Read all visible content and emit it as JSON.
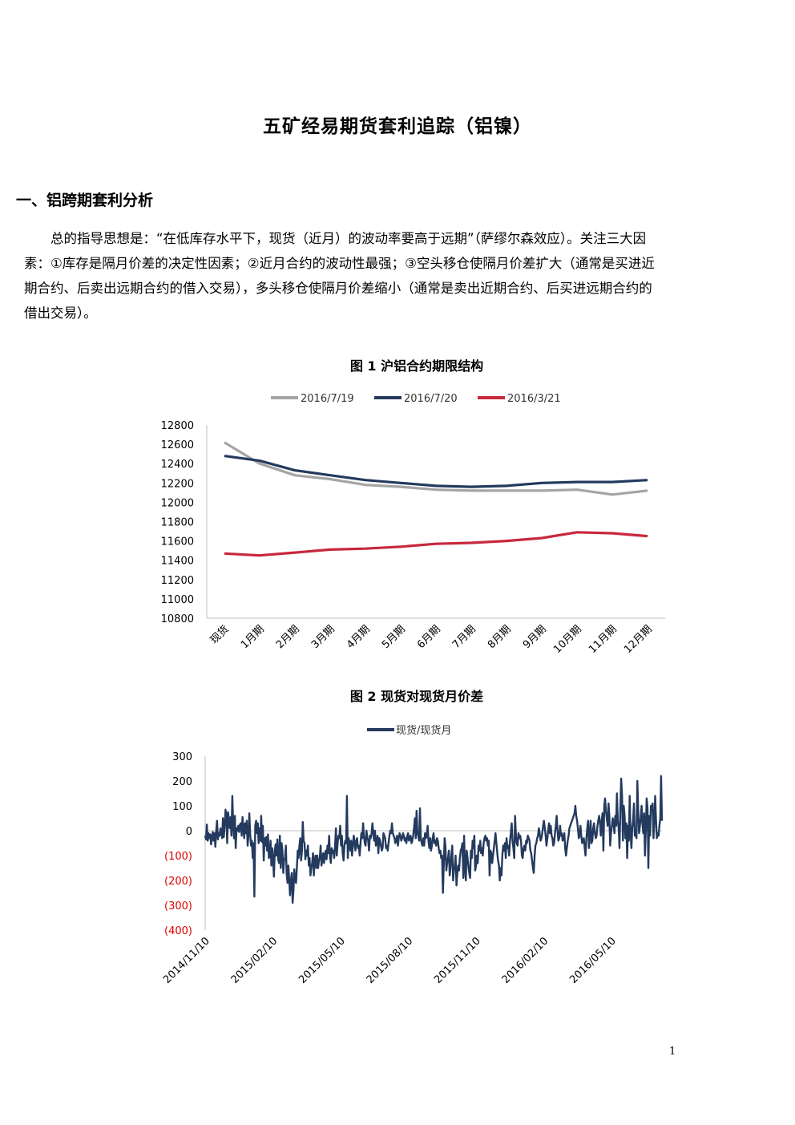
{
  "document": {
    "title": "五矿经易期货套利追踪（铝镍）",
    "section_heading": "一、铝跨期套利分析",
    "paragraph_lines": [
      "总的指导思想是：“在低库存水平下，现货（近月）的波动率要高于远期”（萨缪尔森效应）。关注三大因",
      "素：①库存是隔月价差的决定性因素；②近月合约的波动性最强；③空头移仓使隔月价差扩大（通常是买进近",
      "期合约、后卖出远期合约的借入交易），多头移仓使隔月价差缩小（通常是卖出近期合约、后买进远期合约的",
      "借出交易）。"
    ],
    "page_number": "1"
  },
  "chart_data": [
    {
      "type": "line",
      "title": "图 1  沪铝合约期限结构",
      "categories": [
        "现货",
        "1月期",
        "2月期",
        "3月期",
        "4月期",
        "5月期",
        "6月期",
        "7月期",
        "8月期",
        "9月期",
        "10月期",
        "11月期",
        "12月期"
      ],
      "series": [
        {
          "name": "2016/7/19",
          "color": "#a5a5a5",
          "values": [
            12620,
            12400,
            12280,
            12240,
            12180,
            12160,
            12130,
            12120,
            12120,
            12120,
            12130,
            12080,
            12120
          ]
        },
        {
          "name": "2016/7/20",
          "color": "#243a5e",
          "values": [
            12480,
            12430,
            12330,
            12280,
            12230,
            12200,
            12170,
            12160,
            12170,
            12200,
            12210,
            12210,
            12230
          ]
        },
        {
          "name": "2016/3/21",
          "color": "#c8283c",
          "values": [
            11470,
            11450,
            11480,
            11510,
            11520,
            11540,
            11570,
            11580,
            11600,
            11630,
            11690,
            11680,
            11650
          ]
        }
      ],
      "ylim": [
        10800,
        12800
      ],
      "yticks": [
        10800,
        11000,
        11200,
        11400,
        11600,
        11800,
        12000,
        12200,
        12400,
        12600,
        12800
      ],
      "legend": "top",
      "grid": false
    },
    {
      "type": "line",
      "title": "图 2  现货对现货月价差",
      "series": [
        {
          "name": "现货/现货月",
          "color": "#243a5e",
          "values": [
            -20,
            -35,
            25,
            -40,
            -10,
            -30,
            -15,
            -55,
            -30,
            -5,
            -40,
            -10,
            -65,
            0,
            40,
            -35,
            -10,
            -20,
            10,
            -5,
            -30,
            50,
            -25,
            20,
            85,
            60,
            -50,
            75,
            40,
            10,
            55,
            -20,
            140,
            20,
            -30,
            60,
            -70,
            10,
            0,
            20,
            -5,
            25,
            30,
            -20,
            55,
            10,
            -30,
            30,
            -10,
            40,
            -60,
            -20,
            70,
            -15,
            -60,
            -40,
            -110,
            -50,
            -265,
            20,
            40,
            -10,
            30,
            -50,
            10,
            -40,
            60,
            -45,
            20,
            -120,
            -30,
            -60,
            -25,
            -80,
            -15,
            -110,
            -100,
            -40,
            -140,
            -70,
            -120,
            -185,
            -80,
            -55,
            -100,
            -35,
            -115,
            -130,
            -20,
            -150,
            -50,
            -80,
            -170,
            -120,
            -110,
            -60,
            -175,
            -210,
            -140,
            -195,
            -260,
            -200,
            -170,
            -290,
            -240,
            -155,
            -200,
            -210,
            -150,
            -80,
            -110,
            -60,
            -30,
            -120,
            -80,
            35,
            -40,
            -50,
            -115,
            -80,
            -100,
            -60,
            -140,
            -110,
            -180,
            -150,
            -130,
            -90,
            -180,
            -120,
            -100,
            -150,
            -100,
            -150,
            -120,
            -110,
            -60,
            -140,
            -120,
            -90,
            -130,
            -100,
            -80,
            -115,
            -60,
            -90,
            -20,
            -100,
            -130,
            -70,
            -90,
            -80,
            -110,
            -60,
            10,
            -100,
            -50,
            -20,
            -30,
            20,
            -60,
            -20,
            -90,
            -120,
            -60,
            -40,
            -50,
            140,
            -110,
            -30,
            -50,
            -80,
            -40,
            -100,
            -60,
            -20,
            -50,
            -80,
            -40,
            -30,
            -70,
            -60,
            -100,
            -50,
            -10,
            -30,
            30,
            -20,
            -50,
            -60,
            0,
            -30,
            -40,
            -80,
            -20,
            -30,
            -10,
            30,
            -10,
            -40,
            0,
            -60,
            -50,
            -20,
            -90,
            -30,
            -40,
            -60,
            -80,
            -70,
            -10,
            -20,
            -30,
            -70,
            -60,
            -80,
            -50,
            -20,
            0,
            -10,
            30,
            -10,
            -20,
            -30,
            -50,
            -40,
            -20,
            -60,
            -30,
            -10,
            -20,
            -40,
            -30,
            -10,
            -20,
            -40,
            -30,
            -50,
            -20,
            -10,
            -40,
            -30,
            -20,
            -50,
            -40,
            -20,
            10,
            50,
            -30,
            80,
            -10,
            -20,
            -40,
            90,
            -30,
            -50,
            -60,
            -30,
            -60,
            -10,
            -30,
            -20,
            20,
            -40,
            -70,
            -30,
            -80,
            -60,
            -30,
            -10,
            -50,
            -40,
            -60,
            -30,
            -40,
            -70,
            -90,
            -80,
            -110,
            -100,
            -250,
            -140,
            -30,
            -60,
            -160,
            -130,
            -110,
            -80,
            -180,
            -150,
            -100,
            -60,
            -200,
            -160,
            -140,
            -100,
            -220,
            -170,
            -140,
            -160,
            -110,
            -80,
            -70,
            -50,
            -190,
            -20,
            -150,
            -200,
            -80,
            -110,
            -140,
            -170,
            -190,
            -80,
            -110,
            -40,
            -70,
            -20,
            -160,
            -140,
            -100,
            -130,
            -60,
            -80,
            -40,
            -90,
            -70,
            -100,
            -50,
            -30,
            -20,
            -40,
            -30,
            -60,
            -40,
            -180,
            -80,
            -90,
            -130,
            -100,
            -70,
            -40,
            -10,
            -50,
            -90,
            -120,
            -140,
            -200,
            -150,
            -180,
            -100,
            -60,
            -80,
            -50,
            -110,
            -30,
            -70,
            -60,
            -100,
            -40,
            -10,
            30,
            -40,
            -70,
            -110,
            60,
            -20,
            -50,
            -60,
            -10,
            -30,
            -20,
            -40,
            -100,
            -110,
            -70,
            -60,
            -80,
            -40,
            -50,
            -20,
            -30,
            -40,
            -80,
            -90,
            -120,
            -150,
            -170,
            -100,
            -60,
            -50,
            -30,
            -20,
            10,
            -10,
            -40,
            -30,
            -10,
            20,
            40,
            10,
            -20,
            -60,
            -30,
            0,
            30,
            -10,
            20,
            -20,
            -30,
            -60,
            -50,
            -10,
            20,
            60,
            0,
            -40,
            -30,
            20,
            -20,
            -10,
            -40,
            -30,
            -10,
            -70,
            -100,
            -70,
            -40,
            -20,
            10,
            20,
            30,
            40,
            50,
            60,
            70,
            100,
            60,
            40,
            10,
            -30,
            -20,
            20,
            -20,
            -50,
            -40,
            -30,
            -70,
            -100,
            -30,
            10,
            40,
            -70,
            -20,
            40,
            -50,
            -40,
            10,
            30,
            -10,
            -30,
            -20,
            20,
            40,
            60,
            30,
            -20,
            40,
            70,
            -80,
            100,
            130,
            80,
            50,
            20,
            110,
            60,
            -60,
            -10,
            20,
            50,
            30,
            -10,
            60,
            20,
            150,
            40,
            10,
            -70,
            90,
            210,
            140,
            -40,
            100,
            60,
            -30,
            30,
            -110,
            20,
            -40,
            140,
            -10,
            -70,
            10,
            40,
            110,
            -20,
            -10,
            -30,
            200,
            90,
            -10,
            20,
            50,
            100,
            30,
            -10,
            70,
            -100,
            10,
            130,
            90,
            -150,
            60,
            -20,
            100,
            80,
            110,
            -30,
            40,
            140,
            40,
            -30,
            -10,
            -20,
            20,
            50,
            220,
            40
          ]
        }
      ],
      "ylim": [
        -400,
        300
      ],
      "yticks": [
        -400,
        -300,
        -200,
        -100,
        0,
        100,
        200,
        300
      ],
      "ytick_labels": [
        "(400)",
        "(300)",
        "(200)",
        "(100)",
        "0",
        "100",
        "200",
        "300"
      ],
      "xticks": [
        "2014/11/10",
        "2015/02/10",
        "2015/05/10",
        "2015/08/10",
        "2015/11/10",
        "2016/02/10",
        "2016/05/10"
      ],
      "legend": "top",
      "grid": false
    }
  ]
}
